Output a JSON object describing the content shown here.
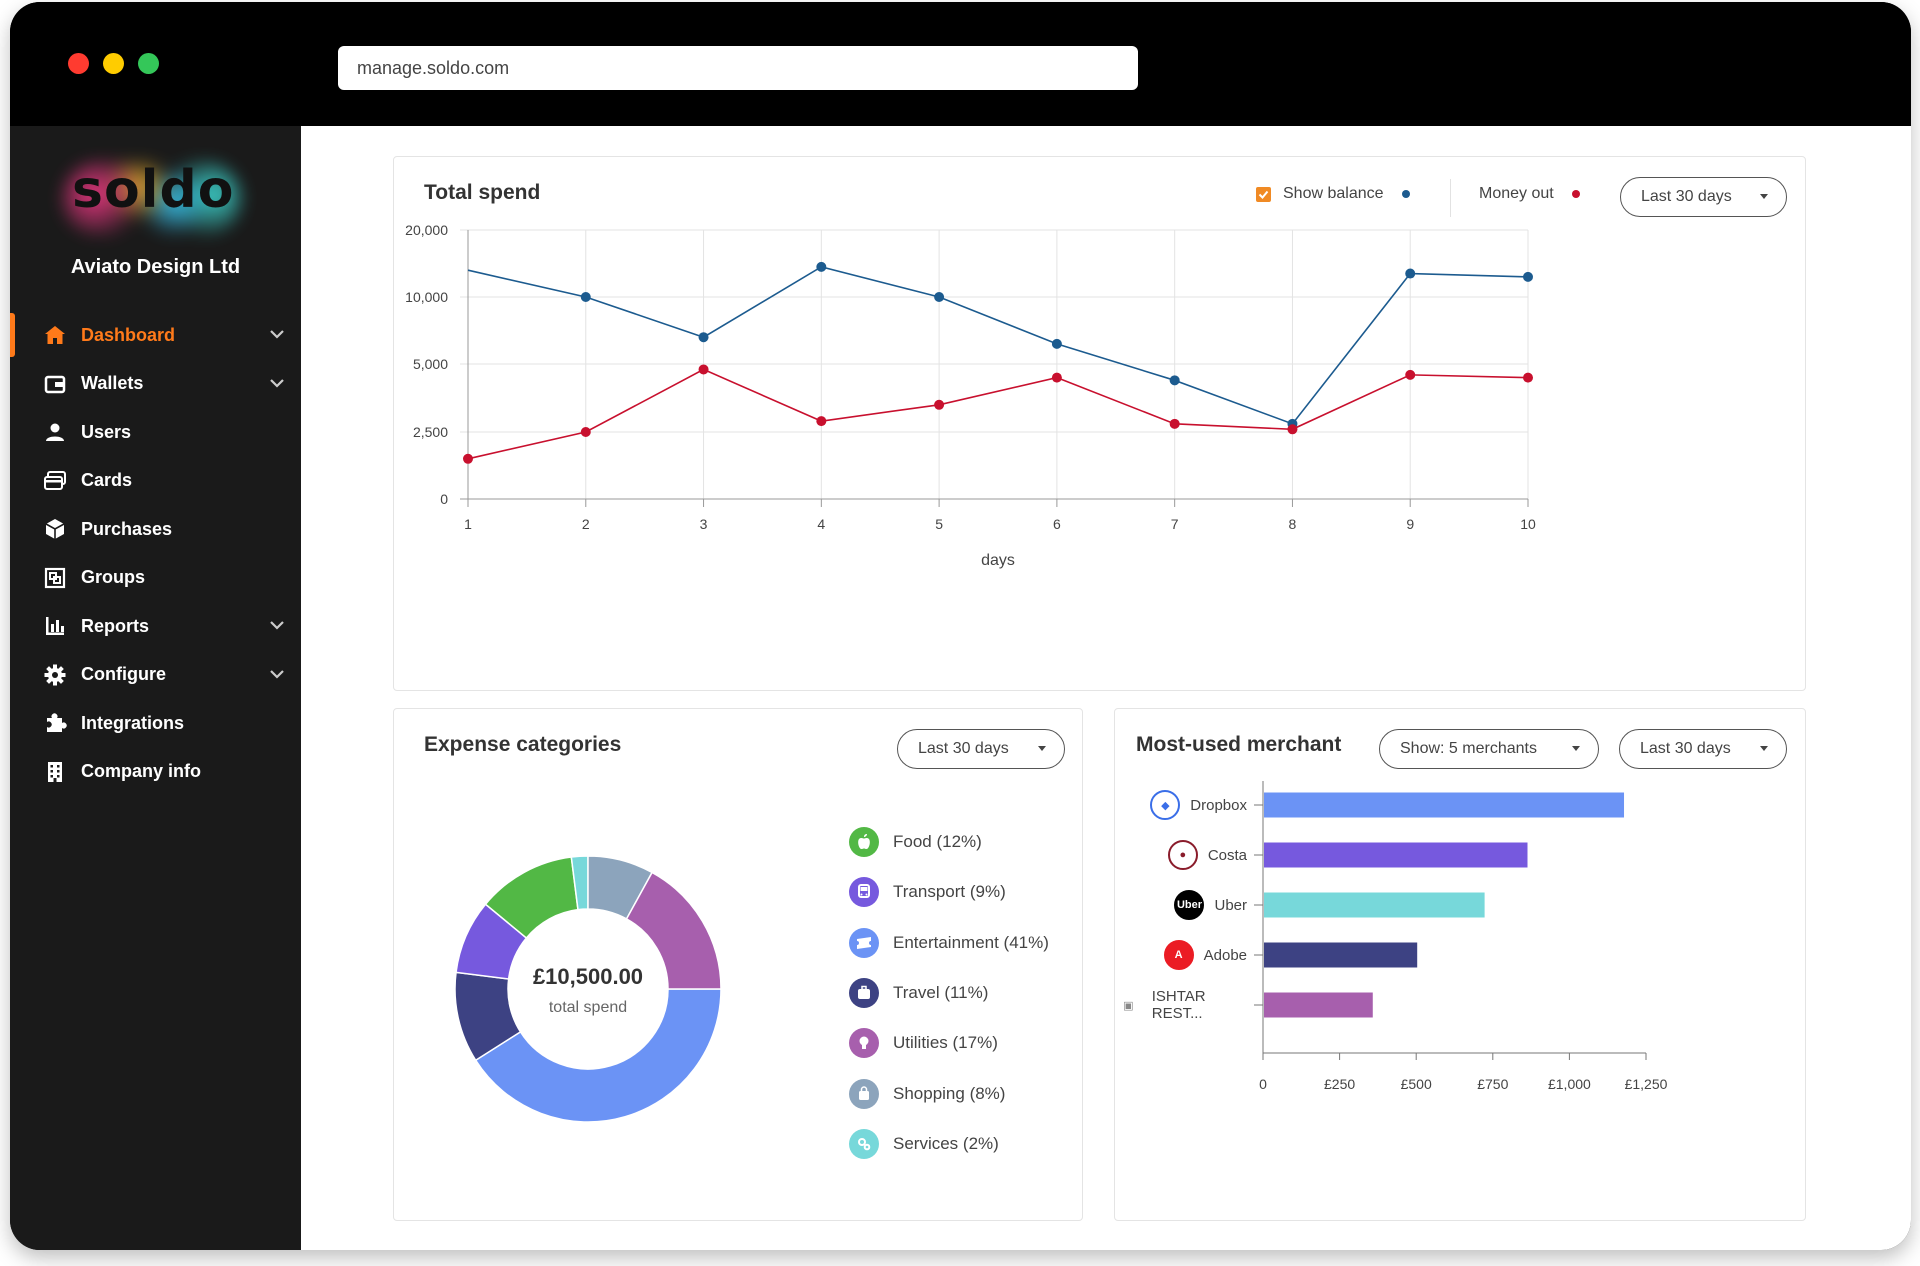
{
  "browser": {
    "url": "manage.soldo.com",
    "traffic_lights": [
      "#ff3b30",
      "#ffcc00",
      "#34c759"
    ]
  },
  "sidebar": {
    "logo_text": "soldo",
    "company": "Aviato Design Ltd",
    "items": [
      {
        "label": "Dashboard",
        "icon": "home-icon",
        "active": true,
        "expandable": true
      },
      {
        "label": "Wallets",
        "icon": "wallet-icon",
        "active": false,
        "expandable": true
      },
      {
        "label": "Users",
        "icon": "user-icon",
        "active": false,
        "expandable": false
      },
      {
        "label": "Cards",
        "icon": "cards-icon",
        "active": false,
        "expandable": false
      },
      {
        "label": "Purchases",
        "icon": "purchases-icon",
        "active": false,
        "expandable": false
      },
      {
        "label": "Groups",
        "icon": "groups-icon",
        "active": false,
        "expandable": false
      },
      {
        "label": "Reports",
        "icon": "bar-chart-icon",
        "active": false,
        "expandable": true
      },
      {
        "label": "Configure",
        "icon": "gear-icon",
        "active": false,
        "expandable": true
      },
      {
        "label": "Integrations",
        "icon": "puzzle-icon",
        "active": false,
        "expandable": false
      },
      {
        "label": "Company info",
        "icon": "building-icon",
        "active": false,
        "expandable": false
      }
    ],
    "accent": "#ff7a1a"
  },
  "total_spend": {
    "title": "Total spend",
    "show_balance_label": "Show balance",
    "money_out_label": "Money out",
    "period": "Last 30 days"
  },
  "expense_categories": {
    "title": "Expense categories",
    "period": "Last 30 days",
    "total_value": "£10,500.00",
    "total_label": "total spend",
    "items": [
      {
        "label": "Food (12%)",
        "icon": "apple-icon",
        "color": "#52b845"
      },
      {
        "label": "Transport (9%)",
        "icon": "bus-icon",
        "color": "#7659de"
      },
      {
        "label": "Entertainment (41%)",
        "icon": "ticket-icon",
        "color": "#6b93f5"
      },
      {
        "label": "Travel (11%)",
        "icon": "suitcase-icon",
        "color": "#3d4283"
      },
      {
        "label": "Utilities (17%)",
        "icon": "lightbulb-icon",
        "color": "#a75fad"
      },
      {
        "label": "Shopping (8%)",
        "icon": "bag-icon",
        "color": "#8ca4bc"
      },
      {
        "label": "Services (2%)",
        "icon": "cogs-icon",
        "color": "#77d8da"
      }
    ]
  },
  "merchants": {
    "title": "Most-used merchant",
    "show_label": "Show: 5 merchants",
    "period": "Last 30 days",
    "logos": [
      "dropbox-icon",
      "costa-icon",
      "uber-icon",
      "adobe-icon",
      "restaurant-icon"
    ]
  },
  "chart_data": [
    {
      "type": "line",
      "title": "Total spend",
      "xlabel": "days",
      "ylabel": "",
      "x": [
        1,
        2,
        3,
        4,
        5,
        6,
        7,
        8,
        9,
        10
      ],
      "y_ticks": [
        "0",
        "2,500",
        "5,000",
        "10,000",
        "20,000"
      ],
      "y_tick_values": [
        0,
        2500,
        5000,
        10000,
        20000
      ],
      "grid": true,
      "series": [
        {
          "name": "Show balance",
          "color": "#1c5b8f",
          "values": [
            14000,
            10000,
            7000,
            14500,
            10000,
            6500,
            4400,
            2800,
            13500,
            13000
          ]
        },
        {
          "name": "Money out",
          "color": "#c8102e",
          "values": [
            1500,
            2500,
            4800,
            2900,
            3500,
            4500,
            2800,
            2600,
            4600,
            4500
          ]
        }
      ]
    },
    {
      "type": "pie",
      "title": "Expense categories",
      "labels": [
        "Entertainment",
        "Travel",
        "Transport",
        "Food",
        "Services",
        "Shopping",
        "Utilities"
      ],
      "values": [
        41,
        11,
        9,
        12,
        2,
        8,
        17
      ],
      "colors": [
        "#6b93f5",
        "#3d4283",
        "#7659de",
        "#52b845",
        "#77d8da",
        "#8ca4bc",
        "#a75fad"
      ]
    },
    {
      "type": "bar",
      "orientation": "horizontal",
      "title": "Most-used merchant",
      "categories": [
        "Dropbox",
        "Costa",
        "Uber",
        "Adobe",
        "ISHTAR REST..."
      ],
      "values": [
        1175,
        860,
        720,
        500,
        355
      ],
      "colors": [
        "#6b93f5",
        "#7659de",
        "#77d8da",
        "#3d4283",
        "#a75fad"
      ],
      "x_ticks": [
        "0",
        "£250",
        "£500",
        "£750",
        "£1,000",
        "£1,250"
      ],
      "x_tick_values": [
        0,
        250,
        500,
        750,
        1000,
        1250
      ]
    }
  ]
}
